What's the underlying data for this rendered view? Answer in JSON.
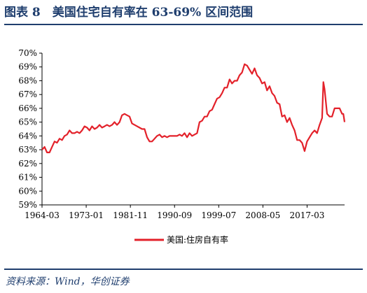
{
  "figure": {
    "title": "图表 8　美国住宅自有率在 63-69% 区间范围",
    "source": "资料来源：Wind，华创证券"
  },
  "colors": {
    "line": "#e3212a",
    "brand": "#1f3e6e",
    "axis": "#000000"
  },
  "chart_data": {
    "type": "line",
    "title": "",
    "xlabel": "",
    "ylabel": "",
    "ylim": [
      59,
      70
    ],
    "y_ticks": [
      "59%",
      "60%",
      "61%",
      "62%",
      "63%",
      "64%",
      "65%",
      "66%",
      "67%",
      "68%",
      "69%",
      "70%"
    ],
    "x_ticks": [
      "1964-03",
      "1973-01",
      "1981-11",
      "1990-09",
      "1999-07",
      "2008-05",
      "2017-03"
    ],
    "xlim": [
      "1964-03",
      "2024-09"
    ],
    "grid": false,
    "legend_position": "bottom-center",
    "series": [
      {
        "name": "美国:住房自有率",
        "points": [
          [
            "1964-03",
            63.0
          ],
          [
            "1964-09",
            63.2
          ],
          [
            "1965-03",
            62.8
          ],
          [
            "1965-09",
            62.8
          ],
          [
            "1966-03",
            63.2
          ],
          [
            "1966-09",
            63.6
          ],
          [
            "1967-03",
            63.5
          ],
          [
            "1967-09",
            63.8
          ],
          [
            "1968-03",
            63.7
          ],
          [
            "1968-09",
            64.0
          ],
          [
            "1969-03",
            64.1
          ],
          [
            "1969-09",
            64.4
          ],
          [
            "1970-03",
            64.2
          ],
          [
            "1970-09",
            64.2
          ],
          [
            "1971-03",
            64.3
          ],
          [
            "1971-09",
            64.2
          ],
          [
            "1972-03",
            64.4
          ],
          [
            "1972-09",
            64.7
          ],
          [
            "1973-03",
            64.6
          ],
          [
            "1973-09",
            64.4
          ],
          [
            "1974-03",
            64.7
          ],
          [
            "1974-09",
            64.5
          ],
          [
            "1975-03",
            64.6
          ],
          [
            "1975-09",
            64.8
          ],
          [
            "1976-03",
            64.6
          ],
          [
            "1976-09",
            64.7
          ],
          [
            "1977-03",
            64.8
          ],
          [
            "1977-09",
            64.7
          ],
          [
            "1978-03",
            64.8
          ],
          [
            "1978-09",
            65.0
          ],
          [
            "1979-03",
            64.8
          ],
          [
            "1979-09",
            65.0
          ],
          [
            "1980-03",
            65.5
          ],
          [
            "1980-09",
            65.6
          ],
          [
            "1981-03",
            65.5
          ],
          [
            "1981-09",
            65.4
          ],
          [
            "1982-03",
            64.9
          ],
          [
            "1982-09",
            64.8
          ],
          [
            "1983-03",
            64.7
          ],
          [
            "1983-09",
            64.6
          ],
          [
            "1984-03",
            64.5
          ],
          [
            "1984-09",
            64.5
          ],
          [
            "1985-03",
            63.9
          ],
          [
            "1985-09",
            63.6
          ],
          [
            "1986-03",
            63.6
          ],
          [
            "1986-09",
            63.8
          ],
          [
            "1987-03",
            64.0
          ],
          [
            "1987-09",
            64.1
          ],
          [
            "1988-03",
            63.9
          ],
          [
            "1988-09",
            64.0
          ],
          [
            "1989-03",
            63.9
          ],
          [
            "1989-09",
            64.0
          ],
          [
            "1990-03",
            64.0
          ],
          [
            "1990-09",
            64.0
          ],
          [
            "1991-03",
            64.0
          ],
          [
            "1991-09",
            64.1
          ],
          [
            "1992-03",
            64.0
          ],
          [
            "1992-09",
            64.2
          ],
          [
            "1993-03",
            63.9
          ],
          [
            "1993-09",
            64.2
          ],
          [
            "1994-03",
            64.0
          ],
          [
            "1994-09",
            64.1
          ],
          [
            "1995-03",
            64.2
          ],
          [
            "1995-09",
            65.0
          ],
          [
            "1996-03",
            65.1
          ],
          [
            "1996-09",
            65.4
          ],
          [
            "1997-03",
            65.4
          ],
          [
            "1997-09",
            65.8
          ],
          [
            "1998-03",
            65.9
          ],
          [
            "1998-09",
            66.3
          ],
          [
            "1999-03",
            66.7
          ],
          [
            "1999-09",
            66.8
          ],
          [
            "2000-03",
            67.1
          ],
          [
            "2000-09",
            67.5
          ],
          [
            "2001-03",
            67.5
          ],
          [
            "2001-09",
            68.1
          ],
          [
            "2002-03",
            67.8
          ],
          [
            "2002-09",
            68.0
          ],
          [
            "2003-03",
            68.0
          ],
          [
            "2003-09",
            68.4
          ],
          [
            "2004-03",
            68.6
          ],
          [
            "2004-09",
            69.2
          ],
          [
            "2005-03",
            69.1
          ],
          [
            "2005-09",
            68.8
          ],
          [
            "2006-03",
            68.5
          ],
          [
            "2006-09",
            68.9
          ],
          [
            "2007-03",
            68.4
          ],
          [
            "2007-09",
            68.2
          ],
          [
            "2008-03",
            67.8
          ],
          [
            "2008-09",
            67.9
          ],
          [
            "2009-03",
            67.3
          ],
          [
            "2009-09",
            67.6
          ],
          [
            "2010-03",
            67.1
          ],
          [
            "2010-09",
            66.9
          ],
          [
            "2011-03",
            66.4
          ],
          [
            "2011-09",
            66.3
          ],
          [
            "2012-03",
            65.4
          ],
          [
            "2012-09",
            65.5
          ],
          [
            "2013-03",
            65.0
          ],
          [
            "2013-09",
            65.3
          ],
          [
            "2014-03",
            64.8
          ],
          [
            "2014-09",
            64.4
          ],
          [
            "2015-03",
            63.7
          ],
          [
            "2015-09",
            63.7
          ],
          [
            "2016-03",
            63.5
          ],
          [
            "2016-09",
            62.9
          ],
          [
            "2017-03",
            63.6
          ],
          [
            "2017-09",
            63.9
          ],
          [
            "2018-03",
            64.2
          ],
          [
            "2018-09",
            64.4
          ],
          [
            "2019-03",
            64.2
          ],
          [
            "2019-09",
            64.8
          ],
          [
            "2020-03",
            65.3
          ],
          [
            "2020-06",
            67.9
          ],
          [
            "2020-09",
            67.4
          ],
          [
            "2021-03",
            65.6
          ],
          [
            "2021-09",
            65.4
          ],
          [
            "2022-03",
            65.4
          ],
          [
            "2022-09",
            66.0
          ],
          [
            "2023-03",
            66.0
          ],
          [
            "2023-09",
            66.0
          ],
          [
            "2024-03",
            65.6
          ],
          [
            "2024-06",
            65.6
          ],
          [
            "2024-09",
            65.0
          ]
        ]
      }
    ]
  }
}
